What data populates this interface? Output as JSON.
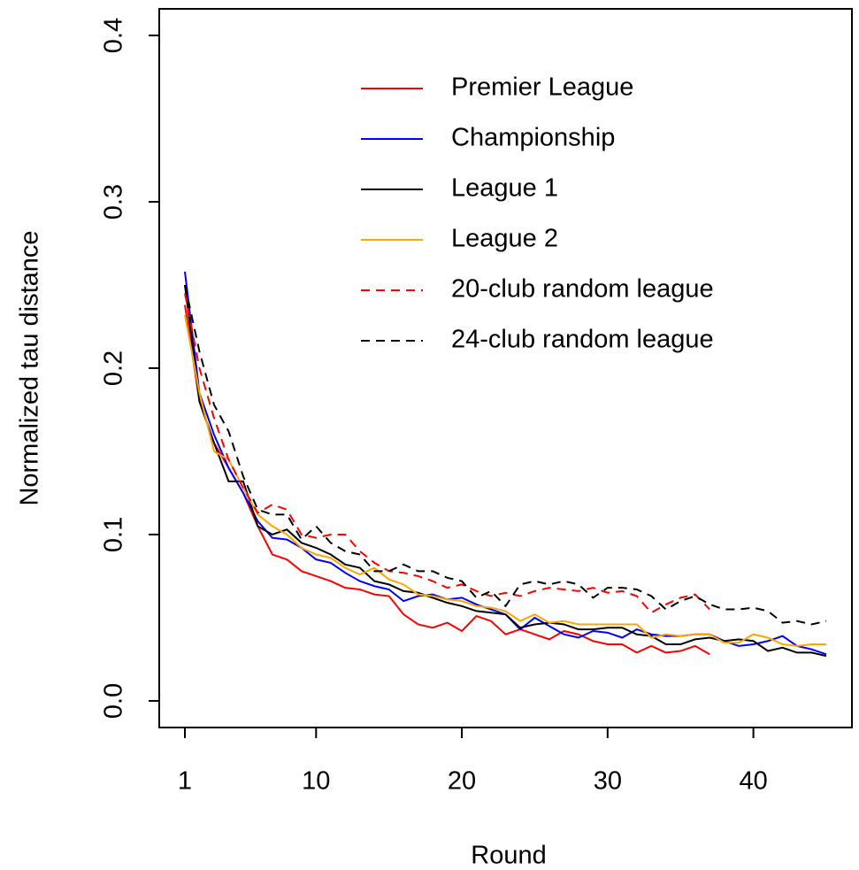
{
  "chart_data": {
    "type": "line",
    "xlabel": "Round",
    "ylabel": "Normalized tau distance",
    "x": [
      1,
      2,
      3,
      4,
      5,
      6,
      7,
      8,
      9,
      10,
      11,
      12,
      13,
      14,
      15,
      16,
      17,
      18,
      19,
      20,
      21,
      22,
      23,
      24,
      25,
      26,
      27,
      28,
      29,
      30,
      31,
      32,
      33,
      34,
      35,
      36,
      37,
      38,
      39,
      40,
      41,
      42,
      43,
      44,
      45
    ],
    "xlim": [
      -0.76,
      46.76
    ],
    "xticks": [
      1,
      10,
      20,
      30,
      40
    ],
    "ylim": [
      -0.016,
      0.416
    ],
    "yticks": [
      {
        "value": 0,
        "label": "0.0"
      },
      0.1,
      0.2,
      0.3,
      0.4
    ],
    "legend": "top",
    "series": [
      {
        "name": "Premier League",
        "color": "#ff0000",
        "linestyle": "solid",
        "values": [
          0.238,
          0.18,
          0.155,
          0.14,
          0.125,
          0.105,
          0.088,
          0.085,
          0.078,
          0.075,
          0.072,
          0.068,
          0.067,
          0.064,
          0.063,
          0.052,
          0.046,
          0.044,
          0.047,
          0.042,
          0.051,
          0.048,
          0.04,
          0.043,
          0.04,
          0.037,
          0.042,
          0.04,
          0.036,
          0.034,
          0.034,
          0.029,
          0.033,
          0.029,
          0.03,
          0.033,
          0.028,
          null,
          null,
          null,
          null,
          null,
          null,
          null,
          null
        ]
      },
      {
        "name": "Championship",
        "color": "#0000ff",
        "linestyle": "solid",
        "values": [
          0.258,
          0.185,
          0.16,
          0.14,
          0.125,
          0.108,
          0.098,
          0.097,
          0.092,
          0.085,
          0.083,
          0.077,
          0.072,
          0.069,
          0.067,
          0.06,
          0.063,
          0.064,
          0.061,
          0.062,
          0.058,
          0.055,
          0.052,
          0.043,
          0.05,
          0.045,
          0.04,
          0.038,
          0.042,
          0.041,
          0.038,
          0.043,
          0.04,
          0.039,
          0.039,
          0.04,
          0.04,
          0.036,
          0.033,
          0.034,
          0.036,
          0.039,
          0.033,
          0.031,
          0.028
        ]
      },
      {
        "name": "League 1",
        "color": "#000000",
        "linestyle": "solid",
        "values": [
          0.25,
          0.18,
          0.155,
          0.132,
          0.132,
          0.105,
          0.1,
          0.103,
          0.095,
          0.092,
          0.088,
          0.082,
          0.08,
          0.072,
          0.07,
          0.066,
          0.065,
          0.062,
          0.059,
          0.057,
          0.054,
          0.053,
          0.052,
          0.044,
          0.046,
          0.047,
          0.046,
          0.043,
          0.043,
          0.044,
          0.044,
          0.04,
          0.039,
          0.034,
          0.034,
          0.037,
          0.038,
          0.036,
          0.037,
          0.036,
          0.03,
          0.032,
          0.029,
          0.029,
          0.027
        ]
      },
      {
        "name": "League 2",
        "color": "#ffa500",
        "linestyle": "solid",
        "values": [
          0.232,
          0.185,
          0.15,
          0.145,
          0.128,
          0.112,
          0.105,
          0.1,
          0.092,
          0.088,
          0.086,
          0.08,
          0.076,
          0.08,
          0.073,
          0.07,
          0.064,
          0.063,
          0.061,
          0.06,
          0.057,
          0.056,
          0.054,
          0.048,
          0.052,
          0.047,
          0.048,
          0.046,
          0.046,
          0.046,
          0.046,
          0.046,
          0.038,
          0.04,
          0.039,
          0.04,
          0.04,
          0.035,
          0.035,
          0.04,
          0.038,
          0.034,
          0.033,
          0.034,
          0.034
        ]
      },
      {
        "name": "20-club random league",
        "color": "#ff0000",
        "linestyle": "dashed",
        "values": [
          0.245,
          0.2,
          0.17,
          0.145,
          0.128,
          0.113,
          0.118,
          0.115,
          0.1,
          0.098,
          0.1,
          0.1,
          0.09,
          0.083,
          0.078,
          0.077,
          0.075,
          0.072,
          0.068,
          0.07,
          0.066,
          0.063,
          0.065,
          0.063,
          0.066,
          0.068,
          0.067,
          0.066,
          0.068,
          0.065,
          0.066,
          0.063,
          0.053,
          0.058,
          0.062,
          0.064,
          0.055,
          null,
          null,
          null,
          null,
          null,
          null,
          null,
          null
        ]
      },
      {
        "name": "24-club random league",
        "color": "#000000",
        "linestyle": "dashed",
        "values": [
          0.25,
          0.21,
          0.178,
          0.162,
          0.135,
          0.115,
          0.112,
          0.112,
          0.097,
          0.105,
          0.095,
          0.09,
          0.088,
          0.078,
          0.078,
          0.082,
          0.078,
          0.078,
          0.074,
          0.072,
          0.062,
          0.066,
          0.057,
          0.07,
          0.072,
          0.07,
          0.072,
          0.07,
          0.062,
          0.068,
          0.068,
          0.067,
          0.063,
          0.055,
          0.06,
          0.063,
          0.058,
          0.055,
          0.055,
          0.056,
          0.054,
          0.047,
          0.048,
          0.046,
          0.048
        ]
      }
    ]
  }
}
